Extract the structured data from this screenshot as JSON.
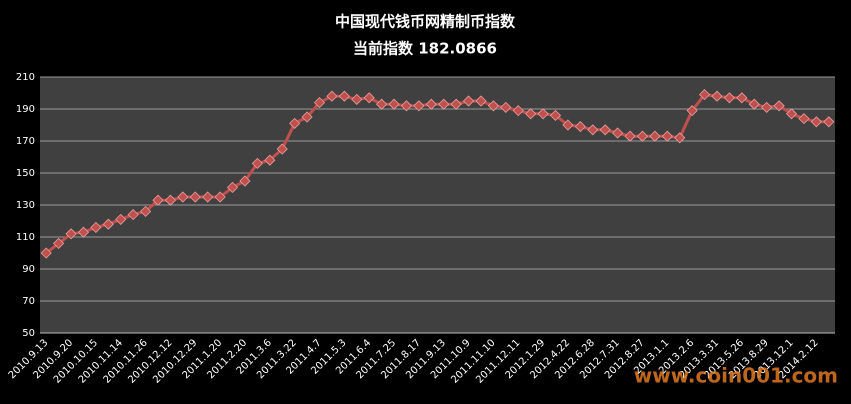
{
  "chart_data": {
    "type": "line",
    "title": "中国现代钱币网精制币指数",
    "subtitle": "当前指数 182.0866",
    "categories": [
      "2010.9.13",
      null,
      "2010.9.20",
      null,
      "2010.10.15",
      null,
      "2010.11.14",
      null,
      "2010.11.26",
      null,
      "2010.12.12",
      null,
      "2010.12.29",
      null,
      "2011.1.20",
      null,
      "2011.2.20",
      null,
      "2011.3.6",
      null,
      "2011.3.22",
      null,
      "2011.4.7",
      null,
      "2011.5.3",
      null,
      "2011.6.4",
      null,
      "2011.7.25",
      null,
      "2011.8.17",
      null,
      "2011.9.13",
      null,
      "2011.10.9",
      null,
      "2011.11.10",
      null,
      "2011.12.11",
      null,
      "2012.1.29",
      null,
      "2012.4.22",
      null,
      "2012.6.28",
      null,
      "2012.7.31",
      null,
      "2012.8.27",
      null,
      "2013.1.1",
      null,
      "2013.2.6",
      null,
      "2013.3.31",
      null,
      "2013.5.26",
      null,
      "2013.8.29",
      null,
      "2013.12.1",
      null,
      "2014.2.12",
      null
    ],
    "values": [
      100,
      106,
      112,
      113,
      116,
      118,
      121,
      124,
      126,
      133,
      133,
      135,
      135,
      135,
      135,
      141,
      145,
      156,
      158,
      165,
      181,
      185,
      194,
      198,
      198,
      196,
      197,
      193,
      193,
      192,
      192,
      193,
      193,
      193,
      195,
      195,
      192,
      191,
      189,
      187,
      187,
      186,
      180,
      179,
      177,
      177,
      175,
      173,
      173,
      173,
      173,
      172,
      189,
      199,
      198,
      197,
      197,
      193,
      191,
      192,
      187,
      184,
      182,
      182
    ],
    "color": "#c0504d",
    "ylim": [
      50,
      210
    ],
    "yticks": [
      50,
      70,
      90,
      110,
      130,
      150,
      170,
      190,
      210
    ],
    "grid": true,
    "watermark": "www.coin001.com"
  }
}
